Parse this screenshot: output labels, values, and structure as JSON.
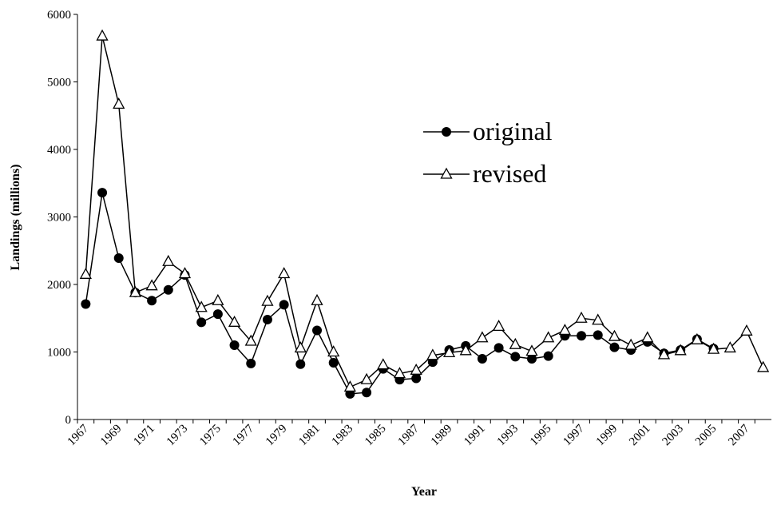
{
  "chart_data": {
    "type": "line",
    "x_label": "Year",
    "y_label": "Landings (millions)",
    "categories": [
      "1967",
      null,
      "1969",
      null,
      "1971",
      null,
      "1973",
      null,
      "1975",
      null,
      "1977",
      null,
      "1979",
      null,
      "1981",
      null,
      "1983",
      null,
      "1985",
      null,
      "1987",
      null,
      "1989",
      null,
      "1991",
      null,
      "1993",
      null,
      "1995",
      null,
      "1997",
      null,
      "1999",
      null,
      "2001",
      null,
      "2003",
      null,
      "2005",
      null,
      "2007",
      null
    ],
    "series": [
      {
        "name": "original",
        "color": "#000000",
        "marker": "circle",
        "values": [
          1710,
          3360,
          2390,
          1880,
          1760,
          1920,
          2140,
          1440,
          1560,
          1100,
          830,
          1480,
          1700,
          820,
          1320,
          840,
          380,
          400,
          750,
          590,
          610,
          850,
          1030,
          1090,
          900,
          1060,
          930,
          900,
          940,
          1240,
          1240,
          1250,
          1070,
          1030,
          1150,
          980,
          1030,
          1190,
          1050,
          null,
          null,
          null
        ]
      },
      {
        "name": "revised",
        "color": "#000000",
        "marker": "triangle",
        "values": [
          2150,
          5680,
          4670,
          1880,
          1980,
          2340,
          2160,
          1660,
          1760,
          1440,
          1160,
          1750,
          2160,
          1060,
          1760,
          1000,
          480,
          590,
          810,
          680,
          730,
          950,
          990,
          1020,
          1210,
          1380,
          1110,
          1010,
          1210,
          1320,
          1500,
          1470,
          1230,
          1100,
          1210,
          960,
          1020,
          1180,
          1040,
          1060,
          1310,
          770
        ]
      }
    ],
    "ylim": [
      0,
      6000
    ],
    "yticks": [
      0,
      1000,
      2000,
      3000,
      4000,
      5000,
      6000
    ],
    "grid": false
  }
}
